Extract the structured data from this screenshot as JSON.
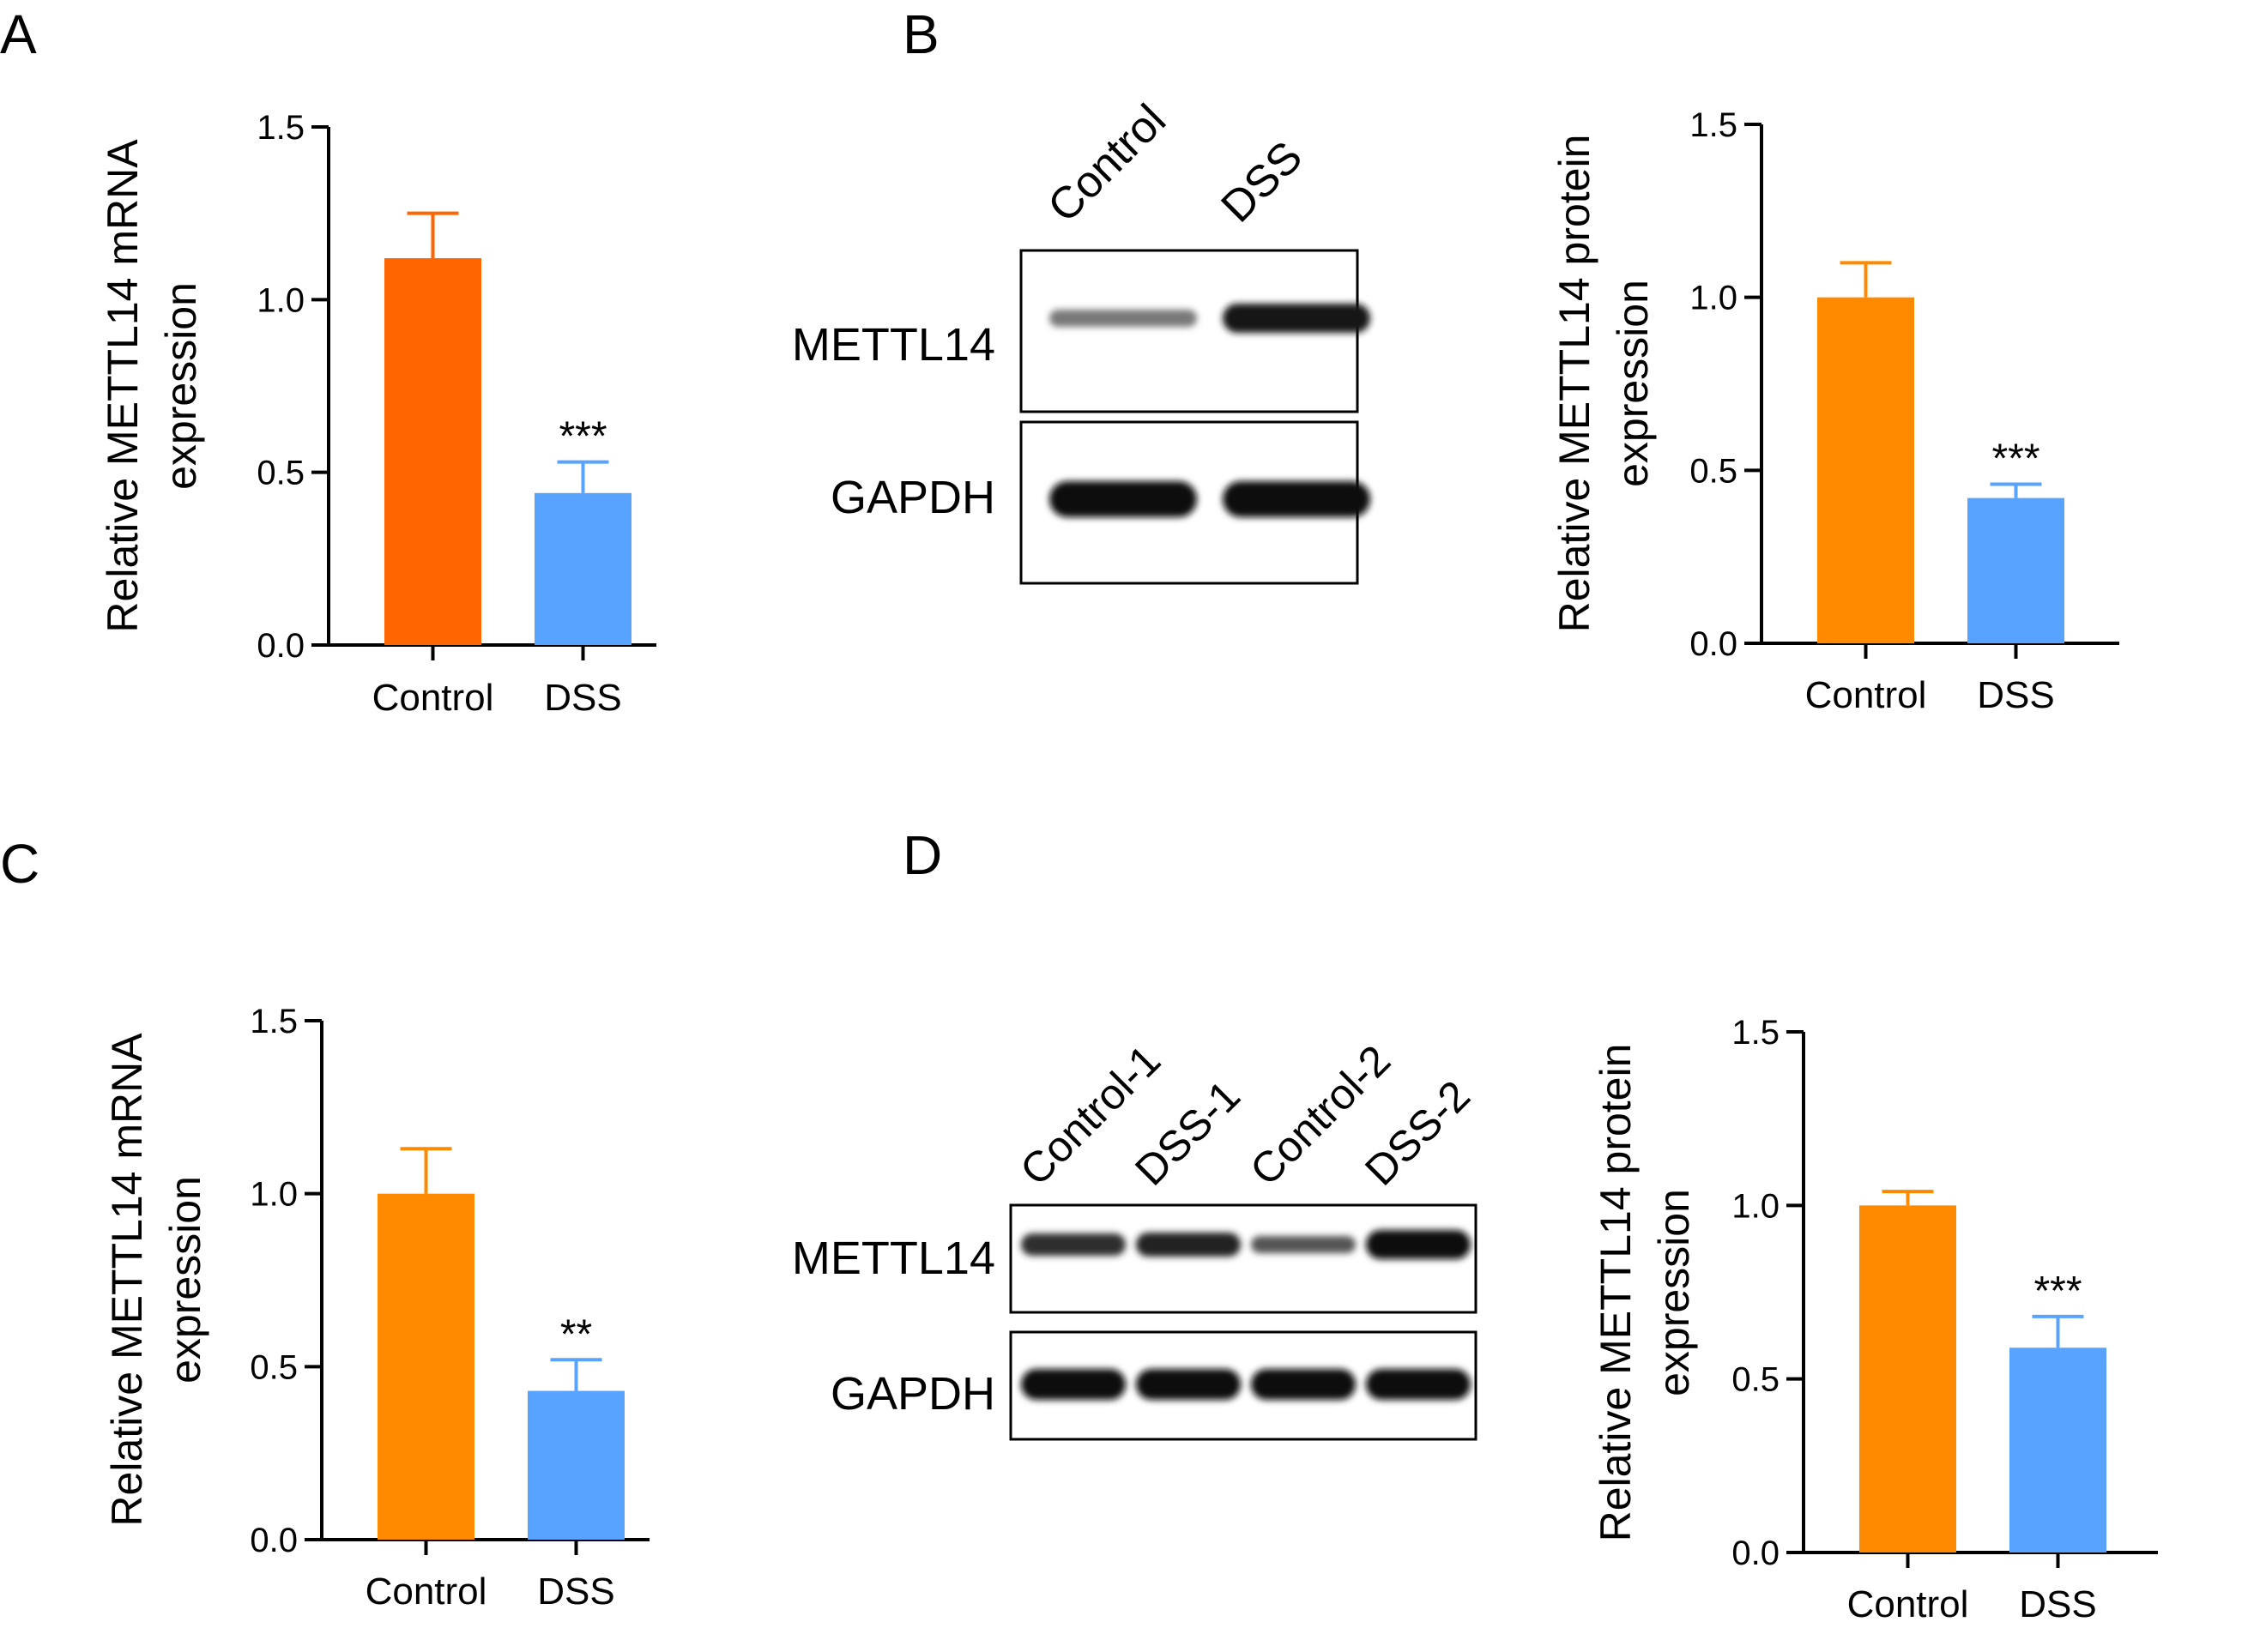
{
  "panels": [
    {
      "label": "A"
    },
    {
      "label": "B"
    },
    {
      "label": "C"
    },
    {
      "label": "D"
    }
  ],
  "blots": [
    {
      "lanes": [
        "Control",
        "DSS"
      ],
      "rows": [
        {
          "label": "METTL14",
          "intensity": [
            0.55,
            0.95
          ]
        },
        {
          "label": "GAPDH",
          "intensity": [
            1.0,
            1.0
          ]
        }
      ]
    },
    {
      "lanes": [
        "Control-1",
        "DSS-1",
        "Control-2",
        "DSS-2"
      ],
      "rows": [
        {
          "label": "METTL14",
          "intensity": [
            0.85,
            0.9,
            0.7,
            1.0
          ]
        },
        {
          "label": "GAPDH",
          "intensity": [
            1.0,
            1.0,
            1.0,
            1.0
          ]
        }
      ]
    }
  ],
  "chart_data": [
    {
      "type": "bar",
      "panel": "A",
      "categories": [
        "Control",
        "DSS"
      ],
      "values": [
        1.12,
        0.44
      ],
      "errors": [
        0.13,
        0.09
      ],
      "significance": [
        "",
        "***"
      ],
      "colors": [
        "#ff6600",
        "#57a3ff"
      ],
      "ylabel_lines": [
        "Relative METTL14 mRNA",
        "expression"
      ],
      "ylim": [
        0,
        1.5
      ],
      "yticks": [
        0.0,
        0.5,
        1.0,
        1.5
      ],
      "ytick_labels": [
        "0.0",
        "0.5",
        "1.0",
        "1.5"
      ]
    },
    {
      "type": "bar",
      "panel": "B",
      "categories": [
        "Control",
        "DSS"
      ],
      "values": [
        1.0,
        0.42
      ],
      "errors": [
        0.1,
        0.04
      ],
      "significance": [
        "",
        "***"
      ],
      "colors": [
        "#ff8a00",
        "#57a3ff"
      ],
      "ylabel_lines": [
        "Relative METTL14 protein",
        "expression"
      ],
      "ylim": [
        0,
        1.5
      ],
      "yticks": [
        0.0,
        0.5,
        1.0,
        1.5
      ],
      "ytick_labels": [
        "0.0",
        "0.5",
        "1.0",
        "1.5"
      ]
    },
    {
      "type": "bar",
      "panel": "C",
      "categories": [
        "Control",
        "DSS"
      ],
      "values": [
        1.0,
        0.43
      ],
      "errors": [
        0.13,
        0.09
      ],
      "significance": [
        "",
        "**"
      ],
      "colors": [
        "#ff8a00",
        "#57a3ff"
      ],
      "ylabel_lines": [
        "Relative METTL14 mRNA",
        "expression"
      ],
      "ylim": [
        0,
        1.5
      ],
      "yticks": [
        0.0,
        0.5,
        1.0,
        1.5
      ],
      "ytick_labels": [
        "0.0",
        "0.5",
        "1.0",
        "1.5"
      ]
    },
    {
      "type": "bar",
      "panel": "D",
      "categories": [
        "Control",
        "DSS"
      ],
      "values": [
        1.0,
        0.59
      ],
      "errors": [
        0.04,
        0.09
      ],
      "significance": [
        "",
        "***"
      ],
      "colors": [
        "#ff8a00",
        "#57a3ff"
      ],
      "ylabel_lines": [
        "Relative METTL14 protein",
        "expression"
      ],
      "ylim": [
        0,
        1.5
      ],
      "yticks": [
        0.0,
        0.5,
        1.0,
        1.5
      ],
      "ytick_labels": [
        "0.0",
        "0.5",
        "1.0",
        "1.5"
      ]
    }
  ]
}
